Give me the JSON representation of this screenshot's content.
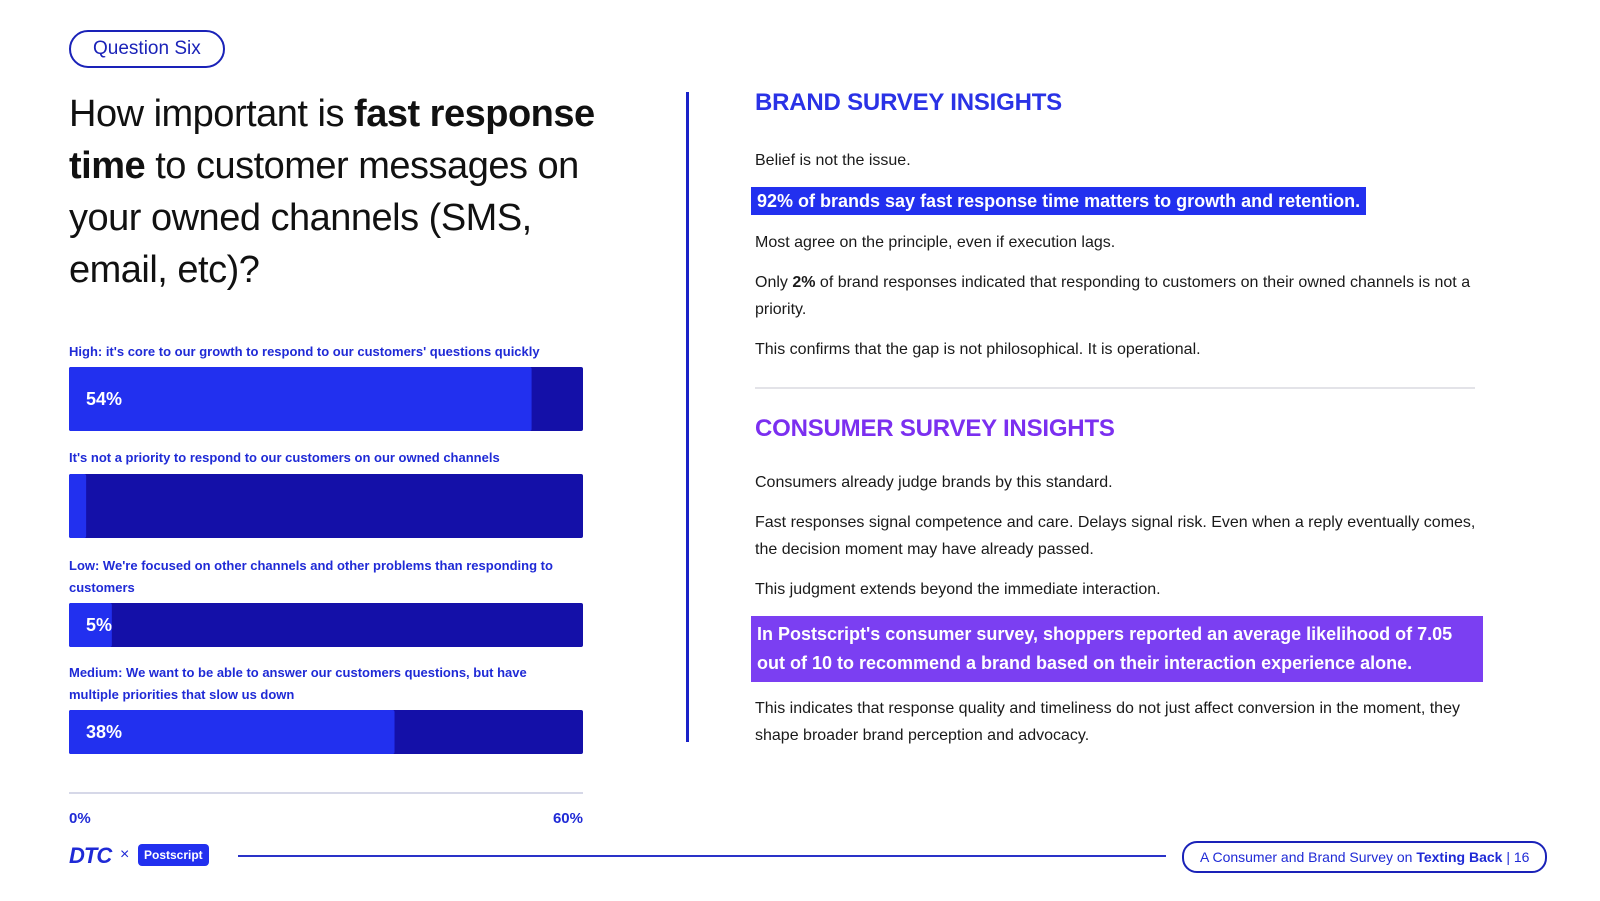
{
  "pill_label": "Question Six",
  "question": {
    "part1": "How important is ",
    "bold1": "fast response time",
    "part2": " to customer messages on your owned channels (SMS, email, etc)?"
  },
  "chart_data": {
    "type": "bar",
    "orientation": "horizontal",
    "categories": [
      "High: it's core to our growth to respond to our customers' questions quickly",
      "It's not a priority to respond to our customers on our owned channels",
      "Low: We're focused on other channels and other problems than responding to customers",
      "Medium: We want to be able to answer our customers questions, but have multiple priorities that slow us down"
    ],
    "values": [
      54,
      2,
      5,
      38
    ],
    "labels": [
      "54%",
      "",
      "5%",
      "38%"
    ],
    "xlim": [
      0,
      60
    ],
    "ticks": [
      "0%",
      "60%"
    ],
    "colors": {
      "value": "#2230ef",
      "track": "#1410a8"
    }
  },
  "brand": {
    "heading": "BRAND SURVEY INSIGHTS",
    "p1": "Belief is not the issue.",
    "highlight": "92% of brands say fast response time matters to growth and retention.",
    "p2": "Most agree on the principle, even if execution lags.",
    "p3a": "Only ",
    "p3b": "2%",
    "p3c": " of brand responses indicated that responding to customers on their owned channels is not a priority.",
    "p4": "This confirms that the gap is not philosophical. It is operational."
  },
  "consumer": {
    "heading": "CONSUMER SURVEY INSIGHTS",
    "p1": "Consumers already judge brands by this standard.",
    "p2": "Fast responses signal competence and care. Delays signal risk. Even when a reply eventually comes, the decision moment may have already passed.",
    "p3": "This judgment extends beyond the immediate interaction.",
    "highlight": "In Postscript's consumer survey, shoppers reported an average likelihood of 7.05 out of 10 to recommend a brand based on their interaction experience alone.",
    "p4": "This indicates that response quality and timeliness do not just affect conversion in the moment, they shape broader brand perception and advocacy."
  },
  "footer": {
    "logo_dtc": "DTC",
    "logo_x": "×",
    "logo_ps": "Postscript",
    "title_a": "A Consumer and Brand Survey on ",
    "title_b": "Texting Back",
    "title_c": " | 16"
  },
  "colors": {
    "accent_blue": "#2230ef",
    "accent_navy": "#1410a8",
    "accent_purple": "#7b3ff2"
  }
}
